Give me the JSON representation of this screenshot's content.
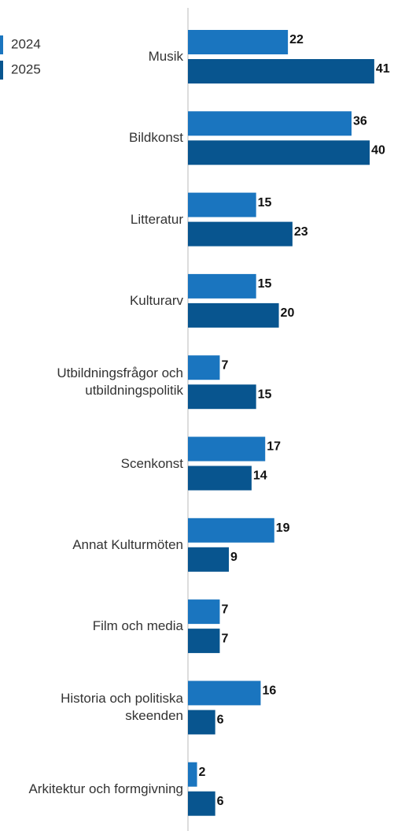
{
  "chart_data": {
    "type": "bar",
    "orientation": "horizontal",
    "categories": [
      "Musik",
      "Bildkonst",
      "Litteratur",
      "Kulturarv",
      "Utbildningsfrågor och utbildningspolitik",
      "Scenkonst",
      "Annat Kulturmöten",
      "Film och media",
      "Historia och politiska skeenden",
      "Arkitektur och formgivning"
    ],
    "series": [
      {
        "name": "2024",
        "color": "#1a75bf",
        "values": [
          22,
          36,
          15,
          15,
          7,
          17,
          19,
          7,
          16,
          2
        ]
      },
      {
        "name": "2025",
        "color": "#08558f",
        "values": [
          41,
          40,
          23,
          20,
          15,
          14,
          9,
          7,
          6,
          6
        ]
      }
    ],
    "xlim": [
      0,
      45
    ],
    "legend": "top-left"
  }
}
